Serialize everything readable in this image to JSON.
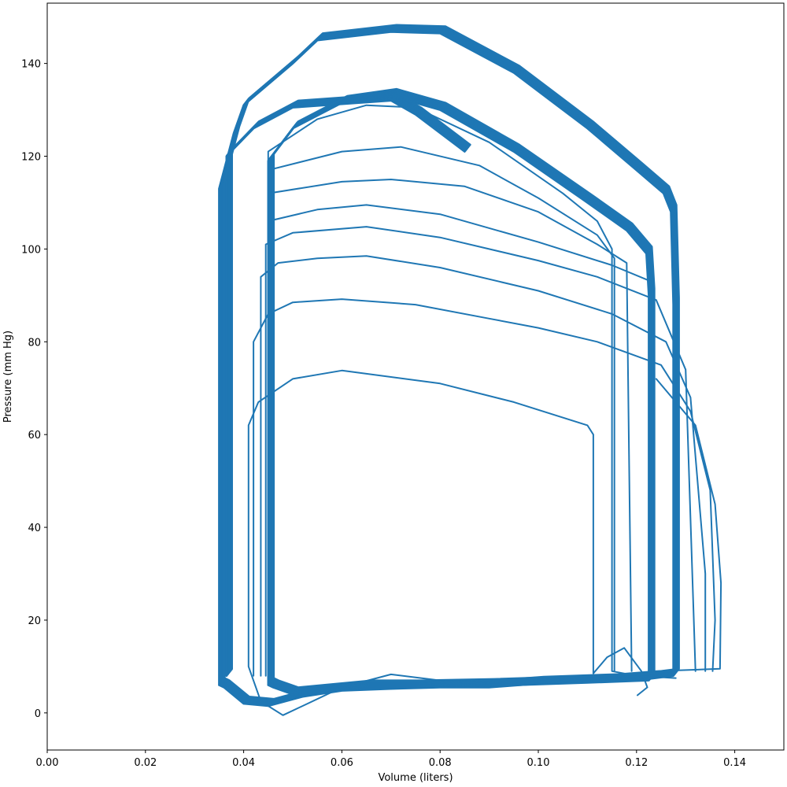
{
  "chart_data": {
    "type": "line",
    "title": "",
    "xlabel": "Volume (liters)",
    "ylabel": "Pressure (mm Hg)",
    "xlim": [
      0.0,
      0.15
    ],
    "ylim": [
      -8,
      153
    ],
    "xticks": [
      0.0,
      0.02,
      0.04,
      0.06,
      0.08,
      0.1,
      0.12,
      0.14
    ],
    "xtick_labels": [
      "0.00",
      "0.02",
      "0.04",
      "0.06",
      "0.08",
      "0.10",
      "0.12",
      "0.14"
    ],
    "yticks": [
      0,
      20,
      40,
      60,
      80,
      100,
      120,
      140
    ],
    "ytick_labels": [
      "0",
      "20",
      "40",
      "60",
      "80",
      "100",
      "120",
      "140"
    ],
    "grid": false,
    "legend": false,
    "line_color": "#1f77b4",
    "series": [
      {
        "description": "pressure-volume loops, converging (approximate outlines of key cycles)",
        "loops": [
          {
            "points": [
              [
                0.1202,
                3.8
              ],
              [
                0.1222,
                5.5
              ],
              [
                0.121,
                9.0
              ],
              [
                0.1175,
                14.0
              ],
              [
                0.114,
                12.0
              ],
              [
                0.1112,
                8.5
              ],
              [
                0.1112,
                60.0
              ],
              [
                0.11,
                62.0
              ],
              [
                0.095,
                67.0
              ],
              [
                0.08,
                71.0
              ],
              [
                0.06,
                73.8
              ],
              [
                0.05,
                72.0
              ],
              [
                0.043,
                67.0
              ],
              [
                0.041,
                62.0
              ],
              [
                0.041,
                10.0
              ],
              [
                0.0435,
                2.5
              ],
              [
                0.048,
                -0.5
              ],
              [
                0.053,
                2.0
              ],
              [
                0.06,
                5.5
              ],
              [
                0.07,
                8.3
              ],
              [
                0.08,
                7.0
              ],
              [
                0.1,
                6.5
              ],
              [
                0.112,
                8.0
              ],
              [
                0.124,
                9.0
              ],
              [
                0.137,
                9.5
              ],
              [
                0.1372,
                28.0
              ],
              [
                0.136,
                45.0
              ],
              [
                0.132,
                62.0
              ],
              [
                0.124,
                72.0
              ]
            ]
          },
          {
            "points": [
              [
                0.042,
                8.0
              ],
              [
                0.042,
                80.0
              ],
              [
                0.045,
                86.0
              ],
              [
                0.05,
                88.5
              ],
              [
                0.06,
                89.2
              ],
              [
                0.075,
                88.0
              ],
              [
                0.09,
                85.0
              ],
              [
                0.1,
                83.0
              ],
              [
                0.112,
                80.0
              ],
              [
                0.125,
                75.0
              ],
              [
                0.131,
                65.0
              ],
              [
                0.135,
                48.0
              ],
              [
                0.136,
                20.0
              ],
              [
                0.1355,
                9.0
              ]
            ]
          },
          {
            "points": [
              [
                0.0435,
                8.0
              ],
              [
                0.0435,
                94.0
              ],
              [
                0.047,
                97.0
              ],
              [
                0.055,
                98.0
              ],
              [
                0.065,
                98.5
              ],
              [
                0.08,
                96.0
              ],
              [
                0.1,
                91.0
              ],
              [
                0.115,
                86.0
              ],
              [
                0.126,
                80.0
              ],
              [
                0.131,
                68.0
              ],
              [
                0.134,
                30.0
              ],
              [
                0.134,
                9.0
              ]
            ]
          },
          {
            "points": [
              [
                0.0445,
                8.0
              ],
              [
                0.0445,
                101.0
              ],
              [
                0.05,
                103.5
              ],
              [
                0.065,
                104.8
              ],
              [
                0.08,
                102.5
              ],
              [
                0.1,
                97.5
              ],
              [
                0.112,
                94.0
              ],
              [
                0.124,
                89.0
              ],
              [
                0.13,
                74.0
              ],
              [
                0.132,
                9.0
              ]
            ]
          },
          {
            "points": [
              [
                0.045,
                8.0
              ],
              [
                0.045,
                106.0
              ],
              [
                0.055,
                108.5
              ],
              [
                0.065,
                109.5
              ],
              [
                0.08,
                107.5
              ],
              [
                0.1,
                101.5
              ],
              [
                0.115,
                96.5
              ],
              [
                0.123,
                93.0
              ],
              [
                0.1235,
                9.0
              ]
            ]
          },
          {
            "points": [
              [
                0.045,
                8.0
              ],
              [
                0.045,
                112.0
              ],
              [
                0.06,
                114.5
              ],
              [
                0.07,
                115.0
              ],
              [
                0.085,
                113.5
              ],
              [
                0.1,
                108.0
              ],
              [
                0.112,
                101.0
              ],
              [
                0.118,
                97.0
              ],
              [
                0.119,
                9.0
              ]
            ]
          },
          {
            "points": [
              [
                0.045,
                8.0
              ],
              [
                0.045,
                117.0
              ],
              [
                0.06,
                121.0
              ],
              [
                0.072,
                122.0
              ],
              [
                0.088,
                118.0
              ],
              [
                0.1,
                111.0
              ],
              [
                0.112,
                103.0
              ],
              [
                0.1155,
                98.0
              ],
              [
                0.1155,
                9.0
              ]
            ]
          },
          {
            "points": [
              [
                0.045,
                7.0
              ],
              [
                0.045,
                121.0
              ],
              [
                0.055,
                128.0
              ],
              [
                0.065,
                131.0
              ],
              [
                0.075,
                130.5
              ],
              [
                0.09,
                123.0
              ],
              [
                0.105,
                112.0
              ],
              [
                0.112,
                106.0
              ],
              [
                0.115,
                100.0
              ],
              [
                0.115,
                9.0
              ],
              [
                0.12,
                8.0
              ],
              [
                0.128,
                7.5
              ]
            ]
          },
          {
            "points": [
              [
                0.0365,
                8.0
              ],
              [
                0.0365,
                120.0
              ],
              [
                0.042,
                126.0
              ],
              [
                0.05,
                130.5
              ],
              [
                0.07,
                132.0
              ],
              [
                0.075,
                129.0
              ],
              [
                0.085,
                121.0
              ]
            ]
          },
          {
            "points": [
              [
                0.035,
                6.0
              ],
              [
                0.035,
                113.0
              ],
              [
                0.038,
                125.0
              ],
              [
                0.04,
                131.0
              ],
              [
                0.05,
                140.0
              ],
              [
                0.055,
                145.0
              ],
              [
                0.07,
                146.8
              ],
              [
                0.08,
                146.5
              ],
              [
                0.095,
                138.0
              ],
              [
                0.11,
                126.0
              ],
              [
                0.12,
                117.0
              ],
              [
                0.1255,
                112.0
              ],
              [
                0.127,
                108.0
              ],
              [
                0.1275,
                88.0
              ],
              [
                0.1275,
                8.0
              ],
              [
                0.12,
                7.0
              ],
              [
                0.1,
                6.3
              ],
              [
                0.09,
                5.5
              ],
              [
                0.08,
                5.5
              ],
              [
                0.07,
                5.2
              ],
              [
                0.06,
                4.8
              ],
              [
                0.052,
                3.5
              ],
              [
                0.045,
                1.5
              ],
              [
                0.04,
                2.0
              ],
              [
                0.036,
                5.5
              ],
              [
                0.035,
                6.0
              ]
            ]
          },
          {
            "points": [
              [
                0.045,
                6.0
              ],
              [
                0.045,
                119.0
              ],
              [
                0.05,
                126.0
              ],
              [
                0.06,
                131.5
              ],
              [
                0.07,
                133.0
              ],
              [
                0.08,
                130.0
              ],
              [
                0.095,
                121.0
              ],
              [
                0.11,
                110.0
              ],
              [
                0.118,
                104.0
              ],
              [
                0.122,
                99.0
              ],
              [
                0.1225,
                90.0
              ],
              [
                0.1225,
                7.0
              ],
              [
                0.11,
                6.5
              ],
              [
                0.09,
                5.8
              ],
              [
                0.075,
                5.5
              ],
              [
                0.065,
                5.5
              ],
              [
                0.055,
                4.5
              ],
              [
                0.05,
                4.0
              ],
              [
                0.046,
                5.5
              ],
              [
                0.045,
                6.0
              ]
            ]
          }
        ]
      }
    ]
  }
}
